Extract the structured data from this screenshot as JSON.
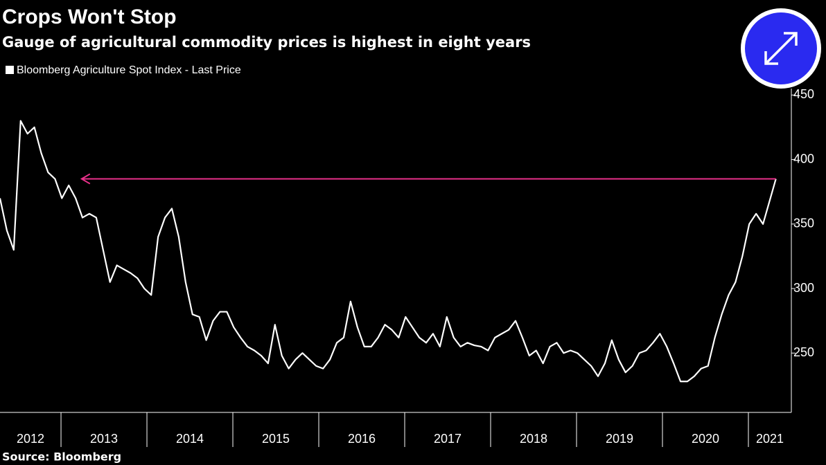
{
  "chart_data": {
    "type": "line",
    "title": "Crops Won't Stop",
    "subtitle": "Gauge of agricultural commodity prices is highest in eight years",
    "source": "Source: Bloomberg",
    "x": [
      2012.29,
      2012.37,
      2012.45,
      2012.53,
      2012.61,
      2012.69,
      2012.77,
      2012.85,
      2012.93,
      2013.01,
      2013.09,
      2013.17,
      2013.25,
      2013.33,
      2013.41,
      2013.49,
      2013.57,
      2013.65,
      2013.73,
      2013.81,
      2013.89,
      2013.97,
      2014.05,
      2014.13,
      2014.21,
      2014.29,
      2014.37,
      2014.45,
      2014.53,
      2014.61,
      2014.69,
      2014.77,
      2014.85,
      2014.93,
      2015.01,
      2015.09,
      2015.17,
      2015.25,
      2015.33,
      2015.41,
      2015.49,
      2015.57,
      2015.65,
      2015.73,
      2015.81,
      2015.89,
      2015.97,
      2016.05,
      2016.13,
      2016.21,
      2016.29,
      2016.37,
      2016.45,
      2016.53,
      2016.61,
      2016.69,
      2016.77,
      2016.85,
      2016.93,
      2017.01,
      2017.09,
      2017.17,
      2017.25,
      2017.33,
      2017.41,
      2017.49,
      2017.57,
      2017.65,
      2017.73,
      2017.81,
      2017.89,
      2017.97,
      2018.05,
      2018.13,
      2018.21,
      2018.29,
      2018.37,
      2018.45,
      2018.53,
      2018.61,
      2018.69,
      2018.77,
      2018.85,
      2018.93,
      2019.01,
      2019.09,
      2019.17,
      2019.25,
      2019.33,
      2019.41,
      2019.49,
      2019.57,
      2019.65,
      2019.73,
      2019.81,
      2019.89,
      2019.97,
      2020.05,
      2020.13,
      2020.21,
      2020.29,
      2020.37,
      2020.45,
      2020.53,
      2020.61,
      2020.69,
      2020.77,
      2020.85,
      2020.93,
      2021.01,
      2021.09,
      2021.17,
      2021.32
    ],
    "series": [
      {
        "name": "Bloomberg Agriculture Spot Index - Last Price",
        "color": "#ffffff",
        "values": [
          370,
          345,
          330,
          430,
          420,
          425,
          405,
          390,
          385,
          370,
          380,
          370,
          355,
          358,
          355,
          330,
          305,
          318,
          315,
          312,
          308,
          300,
          295,
          340,
          355,
          362,
          340,
          305,
          280,
          278,
          260,
          275,
          282,
          282,
          270,
          262,
          255,
          252,
          248,
          242,
          272,
          248,
          238,
          245,
          250,
          245,
          240,
          238,
          245,
          258,
          262,
          290,
          270,
          255,
          255,
          262,
          272,
          268,
          262,
          278,
          270,
          262,
          258,
          265,
          255,
          278,
          262,
          255,
          258,
          256,
          255,
          252,
          262,
          265,
          268,
          275,
          262,
          248,
          252,
          242,
          255,
          258,
          250,
          252,
          250,
          245,
          240,
          232,
          242,
          260,
          245,
          235,
          240,
          250,
          252,
          258,
          265,
          255,
          242,
          228,
          228,
          232,
          238,
          240,
          262,
          280,
          295,
          305,
          325,
          350,
          358,
          350,
          385
        ]
      }
    ],
    "xlim": [
      2012.29,
      2021.5
    ],
    "xticks": [
      2012,
      2013,
      2014,
      2015,
      2016,
      2017,
      2018,
      2019,
      2020,
      2021
    ],
    "ylim": [
      204,
      455
    ],
    "yticks": [
      250,
      300,
      350,
      400,
      450
    ],
    "reference_arrow": {
      "value": 385,
      "from": 2021.32,
      "to": 2013.24,
      "color": "#e8308a"
    }
  }
}
